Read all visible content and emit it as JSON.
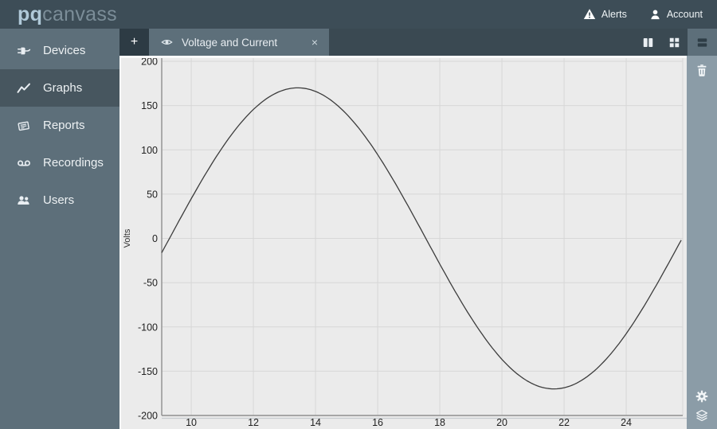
{
  "app": {
    "brand_bold": "pq",
    "brand_light": "canvass"
  },
  "topbar": {
    "alerts_label": "Alerts",
    "account_label": "Account"
  },
  "sidebar": {
    "items": [
      {
        "label": "Devices",
        "icon": "plug-icon",
        "active": false
      },
      {
        "label": "Graphs",
        "icon": "line-chart-icon",
        "active": true
      },
      {
        "label": "Reports",
        "icon": "newspaper-icon",
        "active": false
      },
      {
        "label": "Recordings",
        "icon": "voicemail-icon",
        "active": false
      },
      {
        "label": "Users",
        "icon": "users-icon",
        "active": false
      }
    ]
  },
  "tabbar": {
    "new_tab_label": "+",
    "tabs": [
      {
        "label": "Voltage and Current",
        "close_label": "×",
        "icon": "eye-icon",
        "active": true
      }
    ],
    "layout_buttons": [
      "columns",
      "grid",
      "rows"
    ],
    "active_layout": "rows"
  },
  "side_toolbar": {
    "top_icons": [
      "trash"
    ],
    "bottom_icons": [
      "gear",
      "layers"
    ]
  },
  "colors": {
    "topbar": "#3d4d57",
    "sidebar": "#5d6f7a",
    "sidebar-active": "#47565f",
    "tabbar": "#3a4952",
    "strip": "#8b9ca7",
    "chart-bg": "#ebebeb",
    "grid": "#d7d7d7",
    "axis": "#8f8f8f",
    "curve": "#3c3c3c"
  },
  "chart_data": {
    "type": "line",
    "title": "Voltage and Current",
    "xlabel": "",
    "ylabel": "Volts",
    "xlim": [
      9.05,
      25.82
    ],
    "ylim": [
      -200,
      200
    ],
    "x_ticks": [
      10,
      12,
      14,
      16,
      18,
      20,
      22,
      24
    ],
    "y_ticks": [
      200,
      150,
      100,
      50,
      0,
      -50,
      -100,
      -150,
      -200
    ],
    "grid": true,
    "legend": "none",
    "line_color": "#3c3c3c",
    "series": [
      {
        "name": "Voltage",
        "waveform": {
          "shape": "sine",
          "amplitude": 170,
          "period": 16.5,
          "zero_crossing_x": 9.3
        },
        "points": [
          [
            9.05,
            -16
          ],
          [
            9.3,
            0
          ],
          [
            10,
            45
          ],
          [
            11,
            103
          ],
          [
            12,
            146
          ],
          [
            13,
            168
          ],
          [
            13.4,
            170
          ],
          [
            14,
            166
          ],
          [
            15,
            140
          ],
          [
            16,
            95
          ],
          [
            17,
            35
          ],
          [
            17.55,
            0
          ],
          [
            18,
            -29
          ],
          [
            19,
            -89
          ],
          [
            20,
            -137
          ],
          [
            21,
            -164
          ],
          [
            21.7,
            -170
          ],
          [
            22,
            -169
          ],
          [
            23,
            -149
          ],
          [
            24,
            -108
          ],
          [
            25,
            -51
          ],
          [
            25.8,
            0
          ]
        ]
      }
    ]
  }
}
